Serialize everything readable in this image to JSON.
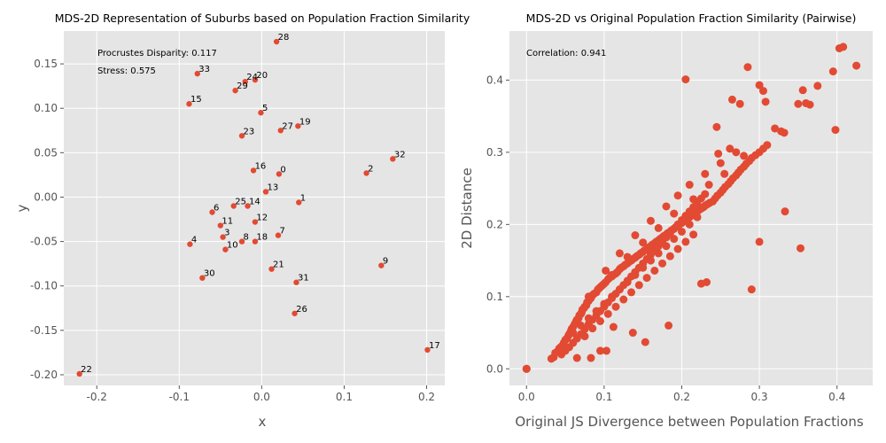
{
  "chart_data": [
    {
      "type": "scatter",
      "title": "MDS-2D Representation of Suburbs based on Population Fraction Similarity",
      "xlabel": "x",
      "ylabel": "y",
      "xlim": [
        -0.24,
        0.222
      ],
      "ylim": [
        -0.212,
        0.187
      ],
      "xticks": [
        "-0.2",
        "-0.1",
        "0.0",
        "0.1",
        "0.2"
      ],
      "xtick_values": [
        -0.2,
        -0.1,
        0.0,
        0.1,
        0.2
      ],
      "yticks": [
        "0.15",
        "0.10",
        "0.05",
        "0.00",
        "-0.05",
        "-0.10",
        "-0.15",
        "-0.20"
      ],
      "ytick_values": [
        0.15,
        0.1,
        0.05,
        0.0,
        -0.05,
        -0.1,
        -0.15,
        -0.2
      ],
      "annotations": [
        "Procrustes Disparity: 0.117",
        "Stress: 0.575"
      ],
      "grid": true,
      "marker_color": "#E24A33",
      "points": [
        {
          "label": "0",
          "x": 0.021,
          "y": 0.026
        },
        {
          "label": "1",
          "x": 0.045,
          "y": -0.006
        },
        {
          "label": "2",
          "x": 0.127,
          "y": 0.027
        },
        {
          "label": "3",
          "x": -0.047,
          "y": -0.045
        },
        {
          "label": "4",
          "x": -0.087,
          "y": -0.053
        },
        {
          "label": "5",
          "x": -0.001,
          "y": 0.095
        },
        {
          "label": "6",
          "x": -0.06,
          "y": -0.017
        },
        {
          "label": "7",
          "x": 0.02,
          "y": -0.043
        },
        {
          "label": "8",
          "x": -0.024,
          "y": -0.05
        },
        {
          "label": "9",
          "x": 0.145,
          "y": -0.077
        },
        {
          "label": "10",
          "x": -0.044,
          "y": -0.059
        },
        {
          "label": "11",
          "x": -0.05,
          "y": -0.032
        },
        {
          "label": "12",
          "x": -0.008,
          "y": -0.028
        },
        {
          "label": "13",
          "x": 0.005,
          "y": 0.006
        },
        {
          "label": "14",
          "x": -0.017,
          "y": -0.01
        },
        {
          "label": "15",
          "x": -0.088,
          "y": 0.105
        },
        {
          "label": "16",
          "x": -0.01,
          "y": 0.03
        },
        {
          "label": "17",
          "x": 0.201,
          "y": -0.172
        },
        {
          "label": "18",
          "x": -0.008,
          "y": -0.05
        },
        {
          "label": "19",
          "x": 0.044,
          "y": 0.08
        },
        {
          "label": "20",
          "x": -0.008,
          "y": 0.132
        },
        {
          "label": "21",
          "x": 0.012,
          "y": -0.081
        },
        {
          "label": "22",
          "x": -0.221,
          "y": -0.199
        },
        {
          "label": "23",
          "x": -0.024,
          "y": 0.069
        },
        {
          "label": "24",
          "x": -0.02,
          "y": 0.13
        },
        {
          "label": "25",
          "x": -0.034,
          "y": -0.01
        },
        {
          "label": "26",
          "x": 0.04,
          "y": -0.131
        },
        {
          "label": "27",
          "x": 0.023,
          "y": 0.075
        },
        {
          "label": "28",
          "x": 0.018,
          "y": 0.175
        },
        {
          "label": "29",
          "x": -0.032,
          "y": 0.12
        },
        {
          "label": "30",
          "x": -0.072,
          "y": -0.091
        },
        {
          "label": "31",
          "x": 0.042,
          "y": -0.096
        },
        {
          "label": "32",
          "x": 0.159,
          "y": 0.043
        },
        {
          "label": "33",
          "x": -0.078,
          "y": 0.139
        }
      ]
    },
    {
      "type": "scatter",
      "title": "MDS-2D vs Original Population Fraction Similarity (Pairwise)",
      "xlabel": "Original JS Divergence between Population Fractions",
      "ylabel": "2D Distance",
      "xlim": [
        -0.022,
        0.446
      ],
      "ylim": [
        -0.023,
        0.468
      ],
      "xticks": [
        "0.0",
        "0.1",
        "0.2",
        "0.3",
        "0.4"
      ],
      "xtick_values": [
        0.0,
        0.1,
        0.2,
        0.3,
        0.4
      ],
      "yticks": [
        "0.0",
        "0.1",
        "0.2",
        "0.3",
        "0.4"
      ],
      "ytick_values": [
        0.0,
        0.1,
        0.2,
        0.3,
        0.4
      ],
      "annotations": [
        "Correlation: 0.941"
      ],
      "grid": true,
      "marker_color": "#E24A33",
      "points_x": [
        0.0,
        0.0,
        0.0,
        0.032,
        0.035,
        0.037,
        0.04,
        0.042,
        0.044,
        0.046,
        0.048,
        0.05,
        0.052,
        0.054,
        0.055,
        0.057,
        0.058,
        0.06,
        0.062,
        0.064,
        0.065,
        0.067,
        0.068,
        0.07,
        0.071,
        0.072,
        0.074,
        0.075,
        0.077,
        0.078,
        0.08,
        0.081,
        0.083,
        0.085,
        0.087,
        0.09,
        0.092,
        0.094,
        0.096,
        0.098,
        0.1,
        0.102,
        0.105,
        0.107,
        0.11,
        0.112,
        0.115,
        0.117,
        0.12,
        0.122,
        0.125,
        0.127,
        0.13,
        0.132,
        0.135,
        0.137,
        0.14,
        0.142,
        0.145,
        0.147,
        0.15,
        0.152,
        0.155,
        0.157,
        0.16,
        0.162,
        0.165,
        0.167,
        0.17,
        0.172,
        0.175,
        0.177,
        0.18,
        0.182,
        0.185,
        0.187,
        0.19,
        0.192,
        0.195,
        0.197,
        0.2,
        0.202,
        0.205,
        0.207,
        0.21,
        0.212,
        0.215,
        0.217,
        0.22,
        0.222,
        0.225,
        0.228,
        0.23,
        0.233,
        0.236,
        0.24,
        0.243,
        0.246,
        0.25,
        0.253,
        0.256,
        0.26,
        0.263,
        0.266,
        0.27,
        0.273,
        0.276,
        0.28,
        0.283,
        0.287,
        0.29,
        0.295,
        0.3,
        0.305,
        0.31,
        0.045,
        0.05,
        0.055,
        0.06,
        0.065,
        0.07,
        0.075,
        0.08,
        0.085,
        0.09,
        0.095,
        0.1,
        0.105,
        0.11,
        0.115,
        0.12,
        0.125,
        0.13,
        0.135,
        0.14,
        0.145,
        0.15,
        0.155,
        0.16,
        0.165,
        0.17,
        0.175,
        0.18,
        0.185,
        0.19,
        0.195,
        0.2,
        0.205,
        0.21,
        0.215,
        0.22,
        0.225,
        0.23,
        0.06,
        0.07,
        0.08,
        0.09,
        0.1,
        0.11,
        0.12,
        0.13,
        0.14,
        0.15,
        0.16,
        0.17,
        0.18,
        0.19,
        0.2,
        0.21,
        0.22,
        0.075,
        0.085,
        0.095,
        0.105,
        0.115,
        0.125,
        0.135,
        0.145,
        0.155,
        0.165,
        0.175,
        0.185,
        0.195,
        0.205,
        0.215,
        0.102,
        0.12,
        0.14,
        0.16,
        0.18,
        0.195,
        0.21,
        0.23,
        0.25,
        0.27,
        0.08,
        0.11,
        0.13,
        0.15,
        0.17,
        0.19,
        0.215,
        0.235,
        0.255,
        0.28,
        0.205,
        0.285,
        0.3,
        0.305,
        0.308,
        0.32,
        0.328,
        0.332,
        0.35,
        0.356,
        0.36,
        0.365,
        0.375,
        0.395,
        0.398,
        0.403,
        0.408,
        0.425,
        0.353,
        0.29,
        0.333,
        0.3,
        0.225,
        0.232,
        0.153,
        0.183,
        0.137,
        0.095,
        0.103,
        0.065,
        0.083,
        0.112,
        0.245,
        0.265,
        0.275,
        0.262,
        0.247
      ],
      "points_y": [
        0.0,
        0.0,
        0.0,
        0.014,
        0.016,
        0.022,
        0.024,
        0.028,
        0.03,
        0.032,
        0.036,
        0.04,
        0.042,
        0.046,
        0.048,
        0.052,
        0.055,
        0.058,
        0.062,
        0.066,
        0.068,
        0.07,
        0.074,
        0.076,
        0.078,
        0.082,
        0.084,
        0.086,
        0.088,
        0.092,
        0.094,
        0.096,
        0.098,
        0.102,
        0.104,
        0.106,
        0.11,
        0.112,
        0.114,
        0.116,
        0.118,
        0.12,
        0.124,
        0.126,
        0.128,
        0.13,
        0.132,
        0.134,
        0.138,
        0.14,
        0.142,
        0.144,
        0.146,
        0.148,
        0.15,
        0.152,
        0.154,
        0.156,
        0.158,
        0.16,
        0.162,
        0.164,
        0.166,
        0.168,
        0.17,
        0.172,
        0.174,
        0.176,
        0.178,
        0.18,
        0.182,
        0.184,
        0.186,
        0.188,
        0.19,
        0.192,
        0.194,
        0.196,
        0.198,
        0.2,
        0.202,
        0.204,
        0.206,
        0.208,
        0.21,
        0.212,
        0.214,
        0.216,
        0.218,
        0.22,
        0.222,
        0.224,
        0.226,
        0.228,
        0.23,
        0.232,
        0.236,
        0.24,
        0.244,
        0.248,
        0.252,
        0.256,
        0.26,
        0.264,
        0.268,
        0.272,
        0.276,
        0.28,
        0.284,
        0.288,
        0.292,
        0.296,
        0.3,
        0.305,
        0.31,
        0.02,
        0.025,
        0.03,
        0.036,
        0.042,
        0.048,
        0.055,
        0.062,
        0.068,
        0.074,
        0.08,
        0.086,
        0.092,
        0.098,
        0.104,
        0.11,
        0.116,
        0.122,
        0.128,
        0.134,
        0.14,
        0.146,
        0.152,
        0.158,
        0.164,
        0.17,
        0.176,
        0.182,
        0.188,
        0.194,
        0.2,
        0.206,
        0.212,
        0.218,
        0.224,
        0.23,
        0.236,
        0.242,
        0.05,
        0.06,
        0.07,
        0.08,
        0.09,
        0.1,
        0.11,
        0.12,
        0.13,
        0.14,
        0.15,
        0.16,
        0.17,
        0.18,
        0.19,
        0.2,
        0.21,
        0.045,
        0.056,
        0.066,
        0.076,
        0.086,
        0.096,
        0.106,
        0.116,
        0.126,
        0.136,
        0.146,
        0.156,
        0.166,
        0.176,
        0.186,
        0.136,
        0.16,
        0.185,
        0.205,
        0.225,
        0.24,
        0.255,
        0.27,
        0.285,
        0.3,
        0.1,
        0.13,
        0.155,
        0.175,
        0.195,
        0.215,
        0.235,
        0.255,
        0.27,
        0.295,
        0.401,
        0.418,
        0.393,
        0.385,
        0.37,
        0.333,
        0.329,
        0.327,
        0.367,
        0.386,
        0.368,
        0.366,
        0.392,
        0.412,
        0.331,
        0.444,
        0.446,
        0.42,
        0.167,
        0.11,
        0.218,
        0.176,
        0.118,
        0.12,
        0.037,
        0.06,
        0.05,
        0.025,
        0.025,
        0.015,
        0.015,
        0.058,
        0.335,
        0.373,
        0.367,
        0.305,
        0.298
      ]
    }
  ]
}
